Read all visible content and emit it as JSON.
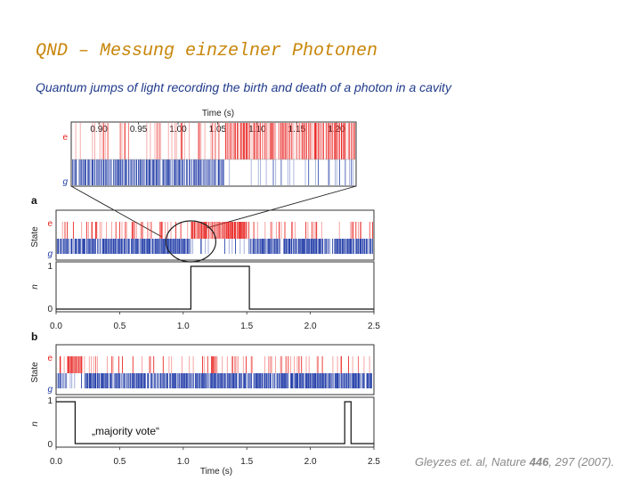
{
  "slide": {
    "title": "QND – Messung einzelner Photonen",
    "subtitle": "Quantum jumps of light recording the birth and death of a photon in a cavity",
    "citation_prefix": "Gleyzes et. al, Nature ",
    "citation_volume": "446",
    "citation_suffix": ", 297 (2007)."
  },
  "colors": {
    "red": "#e8201c",
    "blue": "#1f3aa6",
    "axis": "#333333",
    "circle": "#222222"
  },
  "chart_data": [
    {
      "panel": "zoom",
      "type": "raster",
      "xlabel": "Time (s)",
      "xticks": [
        "0.90",
        "0.95",
        "1.00",
        "1.05",
        "1.10",
        "1.15",
        "1.20"
      ],
      "tick_values": [
        0.9,
        0.95,
        1.0,
        1.05,
        1.1,
        1.15,
        1.2
      ],
      "xlim": [
        0.865,
        1.225
      ],
      "state_labels": [
        "e",
        "g"
      ]
    },
    {
      "panel": "a",
      "type": "raster_and_step",
      "panel_label": "a",
      "ylabel_state": "State",
      "ylabel_n": "n",
      "state_labels": [
        "e",
        "g"
      ],
      "n_ticks": [
        "1",
        "0"
      ],
      "xlim": [
        0.0,
        2.5
      ],
      "photon_interval": [
        1.06,
        1.52
      ],
      "highlight_circle_center": 1.06
    },
    {
      "panel": "b",
      "type": "raster_and_step",
      "panel_label": "b",
      "ylabel_state": "State",
      "ylabel_n": "n",
      "state_labels": [
        "e",
        "g"
      ],
      "n_ticks": [
        "1",
        "0"
      ],
      "xticks": [
        "0.0",
        "0.5",
        "1.0",
        "1.5",
        "2.0",
        "2.5"
      ],
      "tick_values": [
        0.0,
        0.5,
        1.0,
        1.5,
        2.0,
        2.5
      ],
      "xlim": [
        0.0,
        2.5
      ],
      "xlabel": "Time (s)",
      "annotation": "„majority vote“",
      "photon_intervals": [
        [
          0.0,
          0.15
        ],
        [
          2.27,
          2.32
        ]
      ]
    }
  ]
}
